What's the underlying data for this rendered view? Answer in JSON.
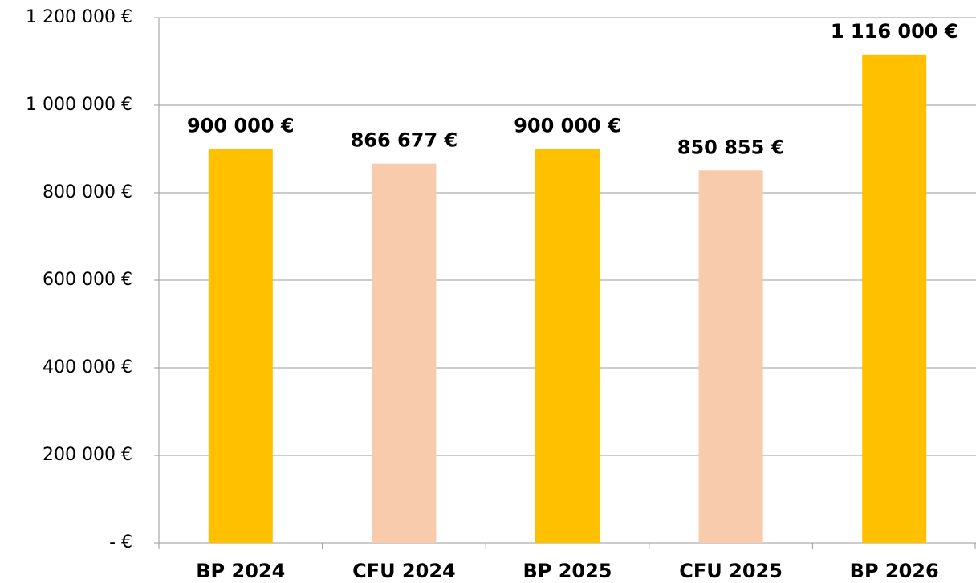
{
  "chart_data": {
    "type": "bar",
    "categories": [
      "BP 2024",
      "CFU 2024",
      "BP 2025",
      "CFU 2025",
      "BP 2026"
    ],
    "values": [
      900000,
      866677,
      900000,
      850855,
      1116000
    ],
    "value_labels": [
      "900 000 €",
      "866 677 €",
      "900 000 €",
      "850 855 €",
      "1 116 000 €"
    ],
    "colors": [
      "#FFC000",
      "#F8CBAD",
      "#FFC000",
      "#F8CBAD",
      "#FFC000"
    ],
    "ylim": [
      0,
      1200000
    ],
    "yticks": [
      {
        "value": 0,
        "label": "- €"
      },
      {
        "value": 200000,
        "label": "200 000 €"
      },
      {
        "value": 400000,
        "label": "400 000 €"
      },
      {
        "value": 600000,
        "label": "600 000 €"
      },
      {
        "value": 800000,
        "label": "800 000 €"
      },
      {
        "value": 1000000,
        "label": "1 000 000 €"
      },
      {
        "value": 1200000,
        "label": "1 200 000 €"
      }
    ],
    "grid": true
  }
}
